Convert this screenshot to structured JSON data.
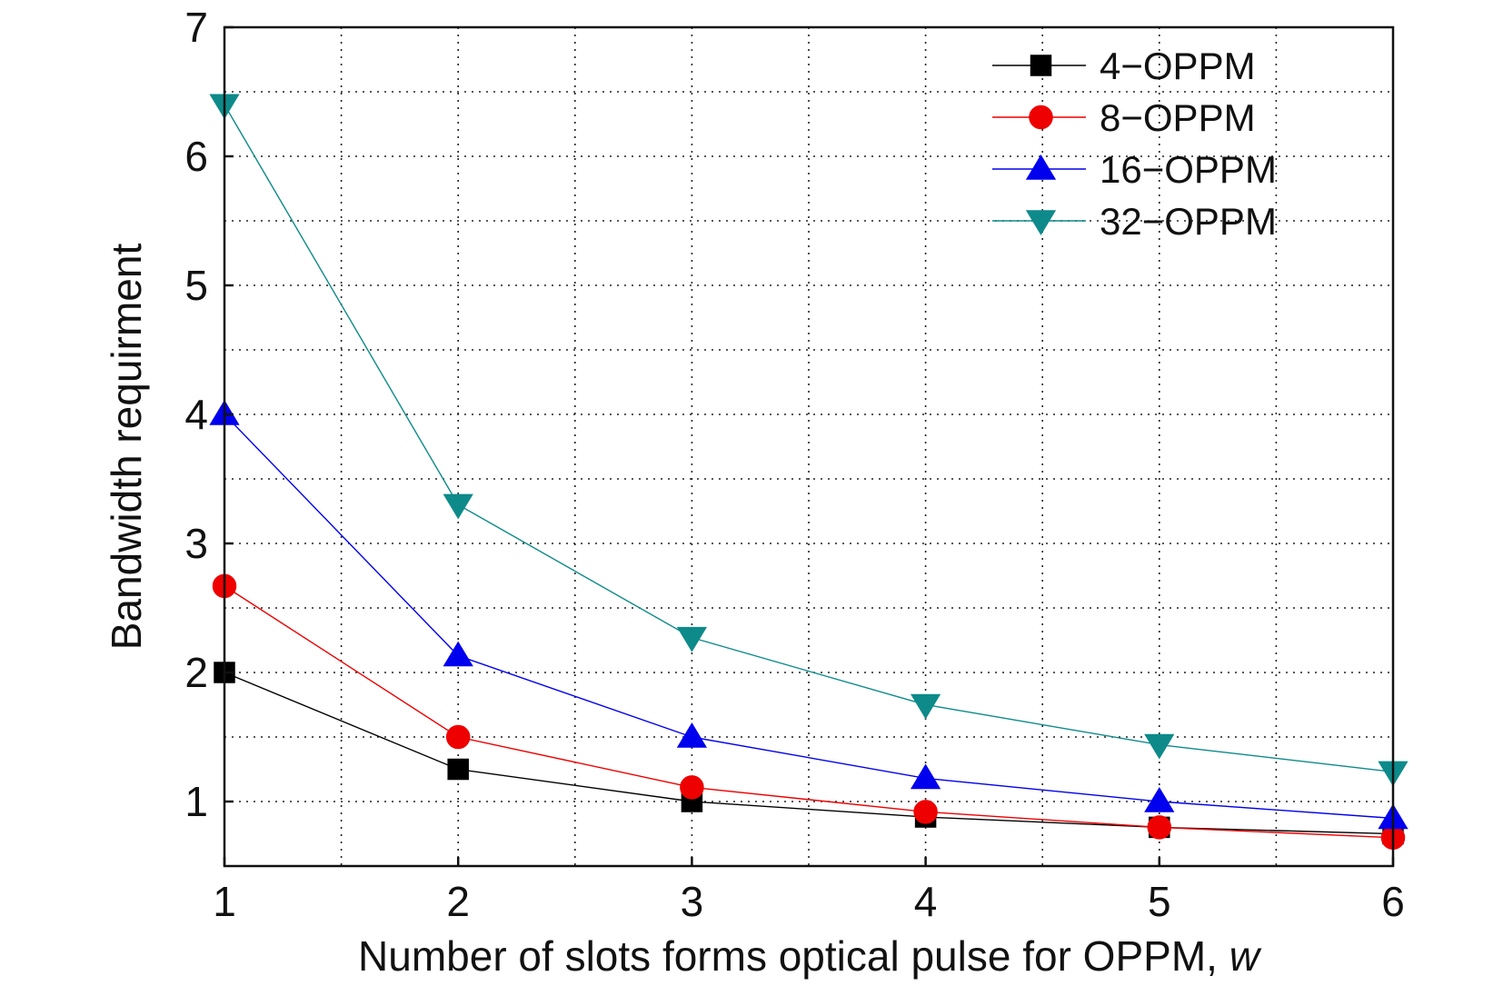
{
  "chart_data": {
    "type": "line",
    "title": "",
    "xlabel_main": "Number of slots forms optical pulse for OPPM, ",
    "xlabel_var": "w",
    "ylabel": "Bandwidth requirment",
    "xlim": [
      1,
      6
    ],
    "ylim": [
      0.5,
      7
    ],
    "x_ticks": [
      1,
      2,
      3,
      4,
      5,
      6
    ],
    "y_ticks": [
      1,
      2,
      3,
      4,
      5,
      6,
      7
    ],
    "x_minor_grid": [
      1.5,
      2.5,
      3.5,
      4.5,
      5.5
    ],
    "y_minor_grid": [
      1.5,
      2.5,
      3.5,
      4.5,
      5.5,
      6.5
    ],
    "grid": true,
    "legend_position": "top-right",
    "x": [
      1,
      2,
      3,
      4,
      5,
      6
    ],
    "series": [
      {
        "name": "4−OPPM",
        "color": "#000000",
        "marker": "square",
        "values": [
          2.0,
          1.25,
          1.0,
          0.88,
          0.8,
          0.75
        ]
      },
      {
        "name": "8−OPPM",
        "color": "#ee0000",
        "marker": "circle",
        "values": [
          2.67,
          1.5,
          1.11,
          0.92,
          0.8,
          0.72
        ]
      },
      {
        "name": "16−OPPM",
        "color": "#0000ee",
        "marker": "triangle-up",
        "values": [
          4.0,
          2.13,
          1.5,
          1.18,
          1.0,
          0.87
        ]
      },
      {
        "name": "32−OPPM",
        "color": "#0e8a8a",
        "marker": "triangle-down",
        "values": [
          6.4,
          3.3,
          2.27,
          1.75,
          1.44,
          1.23
        ]
      }
    ]
  }
}
